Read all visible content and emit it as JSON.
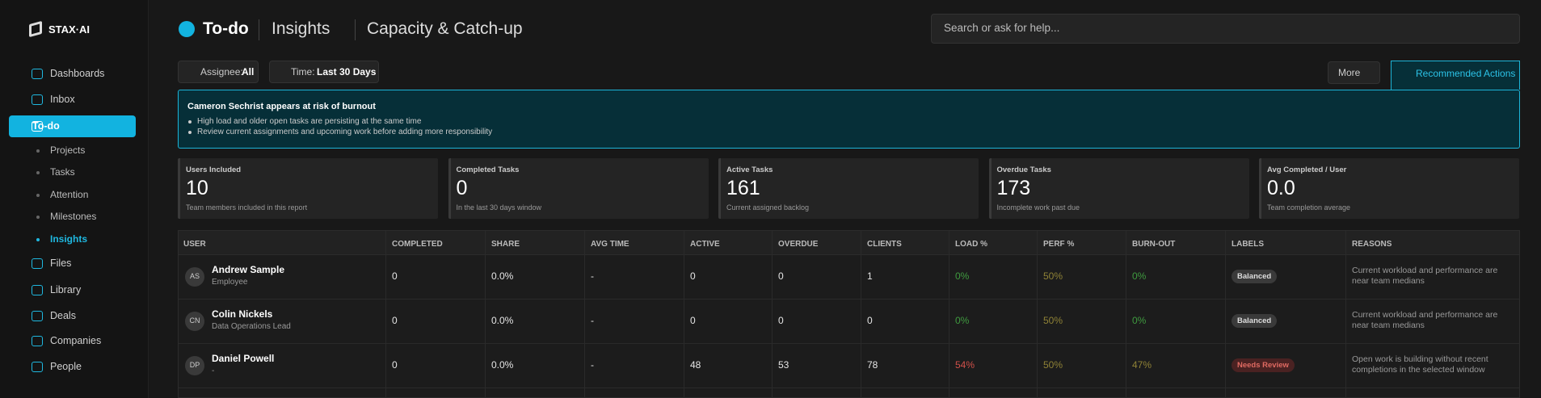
{
  "sidebar": {
    "logo": "STAX·AI",
    "items": [
      "Dashboards",
      "Inbox",
      "To-do",
      "Projects",
      "Tasks",
      "Attention",
      "Milestones",
      "Insights",
      "Files",
      "Library",
      "Deals",
      "Companies",
      "People"
    ]
  },
  "header": {
    "crumbs": [
      "To-do",
      "Insights",
      "Capacity & Catch-up"
    ],
    "search": "Search or ask for help..."
  },
  "filters": {
    "assignee_label": "Assignee:",
    "assignee": "All",
    "time_label": "Time:",
    "time": "Last 30 Days",
    "more": "More",
    "recommended": "Recommended Actions"
  },
  "alert": {
    "title": "Cameron Sechrist appears at risk of burnout",
    "bullets": [
      "High load and older open tasks are persisting at the same time",
      "Review current assignments and upcoming work before adding more responsibility"
    ]
  },
  "stats": [
    {
      "label": "Users Included",
      "value": "10",
      "note": "Team members included in this report"
    },
    {
      "label": "Completed Tasks",
      "value": "0",
      "note": "In the last 30 days window"
    },
    {
      "label": "Active Tasks",
      "value": "161",
      "note": "Current assigned backlog"
    },
    {
      "label": "Overdue Tasks",
      "value": "173",
      "note": "Incomplete work past due"
    },
    {
      "label": "Avg Completed / User",
      "value": "0.0",
      "note": "Team completion average"
    }
  ],
  "table": {
    "columns": [
      "USER",
      "COMPLETED",
      "SHARE",
      "AVG TIME",
      "ACTIVE",
      "OVERDUE",
      "CLIENTS",
      "LOAD %",
      "PERF %",
      "BURN-OUT",
      "LABELS",
      "REASONS"
    ],
    "rows": [
      {
        "initials": "AS",
        "name": "Andrew Sample",
        "role": "Employee",
        "cells": [
          "0",
          "0.0%",
          "-",
          "0",
          "0",
          "1",
          "0%",
          "50%",
          "0%"
        ],
        "tones": [
          "",
          "",
          "",
          "",
          "",
          "",
          "#3f9a3f",
          "#8f8236",
          "#3f9a3f"
        ],
        "label": "Balanced",
        "reason": "Current workload and performance are near team medians"
      },
      {
        "initials": "CN",
        "name": "Colin Nickels",
        "role": "Data Operations Lead",
        "cells": [
          "0",
          "0.0%",
          "-",
          "0",
          "0",
          "0",
          "0%",
          "50%",
          "0%"
        ],
        "tones": [
          "",
          "",
          "",
          "",
          "",
          "",
          "#3f9a3f",
          "#8f8236",
          "#3f9a3f"
        ],
        "label": "Balanced",
        "reason": "Current workload and performance are near team medians"
      },
      {
        "initials": "DP",
        "name": "Daniel Powell",
        "role": "-",
        "cells": [
          "0",
          "0.0%",
          "-",
          "48",
          "53",
          "78",
          "54%",
          "50%",
          "47%"
        ],
        "tones": [
          "",
          "",
          "",
          "",
          "",
          "",
          "#d0504a",
          "#8f8236",
          "#8f8236"
        ],
        "label": "Needs Review",
        "reason": "Open work is building without recent completions in the selected window"
      }
    ]
  }
}
